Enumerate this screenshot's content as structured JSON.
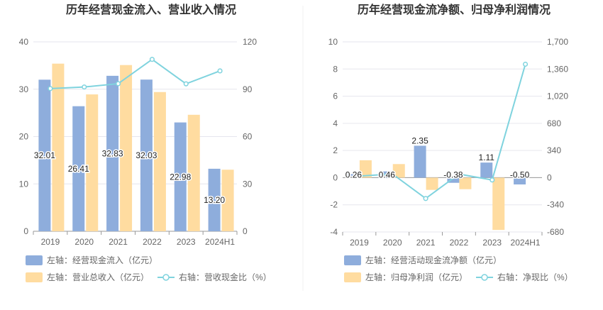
{
  "chart_data": [
    {
      "type": "bar+line",
      "title": "历年经营现金流入、营业收入情况",
      "categories": [
        "2019",
        "2020",
        "2021",
        "2022",
        "2023",
        "2024H1"
      ],
      "y_left": {
        "min": 0,
        "max": 40,
        "ticks": [
          "0",
          "10",
          "20",
          "30",
          "40"
        ]
      },
      "y_right": {
        "min": 0,
        "max": 120,
        "ticks": [
          "0",
          "30",
          "60",
          "90",
          "120"
        ]
      },
      "series": [
        {
          "name": "左轴：经营现金流入（亿元）",
          "axis": "left",
          "kind": "bar",
          "color": "#8eaddc",
          "values": [
            32.01,
            26.41,
            32.83,
            32.03,
            22.98,
            13.2
          ],
          "labels": [
            "32.01",
            "26.41",
            "32.83",
            "32.03",
            "22.98",
            "13.20"
          ]
        },
        {
          "name": "左轴：营业总收入（亿元）",
          "axis": "left",
          "kind": "bar",
          "color": "#ffdca0",
          "values": [
            35.4,
            28.9,
            35.1,
            29.4,
            24.6,
            13.0
          ]
        },
        {
          "name": "右轴：营收现金比（%）",
          "axis": "right",
          "kind": "line",
          "color": "#7fd3de",
          "values": [
            90.4,
            91.4,
            93.5,
            108.9,
            93.4,
            101.6
          ]
        }
      ]
    },
    {
      "type": "bar+line",
      "title": "历年经营现金流净额、归母净利润情况",
      "categories": [
        "2019",
        "2020",
        "2021",
        "2022",
        "2023",
        "2024H1"
      ],
      "y_left": {
        "min": -4,
        "max": 10,
        "ticks": [
          "-4",
          "-2",
          "0",
          "2",
          "4",
          "6",
          "8",
          "10"
        ]
      },
      "y_right": {
        "min": -680,
        "max": 1700,
        "ticks": [
          "-680",
          "-340",
          "0",
          "340",
          "680",
          "1,020",
          "1,360",
          "1,700"
        ]
      },
      "series": [
        {
          "name": "左轴：经营活动现金流净额（亿元）",
          "axis": "left",
          "kind": "bar",
          "color": "#8eaddc",
          "values": [
            0.26,
            0.46,
            2.35,
            -0.38,
            1.11,
            -0.5
          ],
          "labels": [
            "0.26",
            "0.46",
            "2.35",
            "-0.38",
            "1.11",
            "-0.50"
          ]
        },
        {
          "name": "左轴：归母净利润（亿元）",
          "axis": "left",
          "kind": "bar",
          "color": "#ffdca0",
          "values": [
            1.28,
            1.0,
            -0.9,
            -0.85,
            -3.85,
            0.0
          ]
        },
        {
          "name": "右轴：净现比（%）",
          "axis": "right",
          "kind": "line",
          "color": "#7fd3de",
          "values": [
            20,
            46,
            -261,
            45,
            -29,
            1420
          ]
        }
      ]
    }
  ]
}
